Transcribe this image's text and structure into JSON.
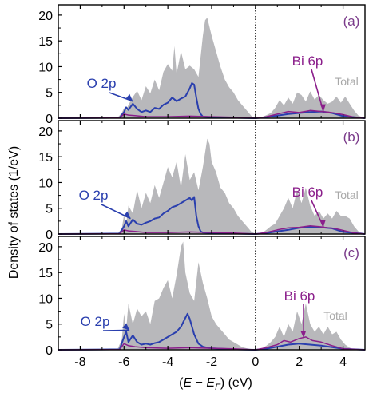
{
  "chart_data": {
    "type": "area",
    "xlabel": "(E − E_F) (eV)",
    "xlabel_parts": {
      "open": "(",
      "E": "E",
      "minus": " − ",
      "E2": "E",
      "sub": "F",
      "close": ")",
      "unit": " (eV)"
    },
    "ylabel": "Density of states (1/eV)",
    "xlim": [
      -9,
      5
    ],
    "ylim": [
      0,
      22
    ],
    "x_ticks": [
      -8,
      -6,
      -4,
      -2,
      0,
      2,
      4
    ],
    "x_tick_labels": [
      "-8",
      "-6",
      "-4",
      "-2",
      "0",
      "2",
      "4"
    ],
    "y_ticks": [
      0,
      5,
      10,
      15,
      20
    ],
    "y_tick_labels": [
      "0",
      "5",
      "10",
      "15",
      "20"
    ],
    "fermi_level": 0,
    "colors": {
      "total": "#b8b8bb",
      "o2p": "#2a3fae",
      "bi6p": "#8b1f8b",
      "panel_label": "#7a3a8a",
      "total_label": "#a8a8a8",
      "axis": "#000000"
    },
    "panels": [
      {
        "label": "(a)",
        "annotations": {
          "o2p": "O 2p",
          "bi6p": "Bi 6p",
          "total": "Total"
        },
        "series": [
          {
            "key": "total",
            "x": [
              -9,
              -6.3,
              -6.1,
              -6.0,
              -5.9,
              -5.8,
              -5.6,
              -5.4,
              -5.2,
              -5.0,
              -4.8,
              -4.6,
              -4.4,
              -4.2,
              -4.0,
              -3.8,
              -3.7,
              -3.6,
              -3.4,
              -3.2,
              -3.0,
              -2.8,
              -2.6,
              -2.4,
              -2.3,
              -2.2,
              -2.0,
              -1.8,
              -1.6,
              -1.4,
              -1.2,
              -1.0,
              -0.8,
              -0.6,
              -0.4,
              -0.2,
              -0.1,
              0.0,
              0.3,
              0.5,
              0.7,
              0.9,
              1.1,
              1.3,
              1.5,
              1.7,
              1.9,
              2.1,
              2.3,
              2.5,
              2.7,
              2.9,
              3.1,
              3.3,
              3.5,
              3.7,
              3.9,
              4.1,
              4.3,
              4.5,
              4.7,
              5.0
            ],
            "y": [
              0,
              0.1,
              1.0,
              2.0,
              1.5,
              2.6,
              4.1,
              5.3,
              3.5,
              6.2,
              4.8,
              7.5,
              5.4,
              9.0,
              10.5,
              9.2,
              14.0,
              8.6,
              13.0,
              9.5,
              10.2,
              9.5,
              8.0,
              16.0,
              19.0,
              19.5,
              16.0,
              13.0,
              10.0,
              7.5,
              6.0,
              5.0,
              3.5,
              2.5,
              1.5,
              0.5,
              0.1,
              0,
              0.2,
              0.6,
              1.0,
              2.0,
              3.5,
              2.5,
              4.0,
              2.8,
              5.0,
              4.5,
              3.2,
              5.2,
              3.6,
              4.5,
              3.5,
              2.8,
              3.2,
              4.2,
              3.0,
              4.2,
              2.8,
              1.5,
              0.5,
              0
            ]
          },
          {
            "key": "o2p",
            "x": [
              -9,
              -6.2,
              -6.0,
              -5.9,
              -5.8,
              -5.6,
              -5.4,
              -5.2,
              -5.0,
              -4.8,
              -4.6,
              -4.4,
              -4.2,
              -4.0,
              -3.8,
              -3.6,
              -3.4,
              -3.2,
              -3.0,
              -2.9,
              -2.8,
              -2.7,
              -2.6,
              -2.5,
              -2.4,
              -2.0,
              -1.5,
              -1.0,
              -0.5,
              0.0,
              0.5,
              1.0,
              1.5,
              2.0,
              2.5,
              3.0,
              3.5,
              4.0,
              5.0
            ],
            "y": [
              0,
              0.1,
              1.2,
              2.1,
              1.6,
              2.8,
              1.8,
              1.2,
              1.5,
              1.2,
              2.0,
              1.8,
              2.6,
              3.0,
              4.0,
              3.3,
              3.8,
              4.2,
              5.8,
              6.8,
              6.5,
              4.0,
              1.8,
              0.8,
              0.3,
              0.2,
              0.15,
              0.1,
              0.05,
              0,
              0.2,
              0.5,
              0.8,
              1.0,
              1.2,
              1.3,
              1.0,
              0.4,
              0
            ]
          },
          {
            "key": "bi6p",
            "x": [
              -9,
              -6.2,
              -6.0,
              -5.8,
              -5.5,
              -5.0,
              -4.0,
              -3.0,
              -2.0,
              -1.0,
              0.0,
              0.5,
              1.0,
              1.5,
              2.0,
              2.5,
              3.0,
              3.3,
              3.6,
              4.0,
              4.5,
              5.0
            ],
            "y": [
              0,
              0.05,
              0.8,
              0.6,
              0.5,
              0.3,
              0.3,
              0.4,
              0.3,
              0.2,
              0,
              0.3,
              0.8,
              1.3,
              1.1,
              1.5,
              1.3,
              1.2,
              1.0,
              0.7,
              0.2,
              0
            ]
          }
        ]
      },
      {
        "label": "(b)",
        "annotations": {
          "o2p": "O 2p",
          "bi6p": "Bi 6p",
          "total": "Total"
        },
        "series": [
          {
            "key": "total",
            "x": [
              -9,
              -6.3,
              -6.1,
              -6.0,
              -5.9,
              -5.8,
              -5.6,
              -5.4,
              -5.2,
              -5.0,
              -4.8,
              -4.6,
              -4.4,
              -4.2,
              -4.0,
              -3.8,
              -3.6,
              -3.4,
              -3.2,
              -3.0,
              -2.8,
              -2.6,
              -2.4,
              -2.2,
              -2.1,
              -2.0,
              -1.8,
              -1.6,
              -1.4,
              -1.2,
              -1.0,
              -0.8,
              -0.6,
              -0.4,
              -0.2,
              0.0,
              0.3,
              0.5,
              0.7,
              0.9,
              1.1,
              1.3,
              1.5,
              1.7,
              1.9,
              2.1,
              2.3,
              2.5,
              2.7,
              2.9,
              3.1,
              3.3,
              3.5,
              3.7,
              3.9,
              4.1,
              4.3,
              4.5,
              4.7,
              5.0
            ],
            "y": [
              0,
              0.1,
              1.0,
              3.8,
              2.0,
              5.5,
              4.0,
              8.5,
              5.0,
              8.0,
              6.0,
              9.5,
              7.0,
              10.0,
              13.0,
              11.0,
              14.0,
              9.0,
              15.5,
              10.5,
              12.0,
              8.5,
              13.0,
              18.5,
              17.5,
              14.0,
              12.0,
              9.0,
              8.0,
              6.0,
              5.0,
              3.5,
              2.5,
              1.5,
              0.5,
              0,
              0.2,
              0.8,
              1.5,
              2.0,
              3.5,
              5.0,
              7.0,
              5.0,
              8.5,
              6.0,
              9.0,
              5.5,
              3.5,
              4.5,
              3.0,
              4.0,
              3.0,
              4.5,
              3.5,
              3.5,
              3.0,
              1.5,
              0.5,
              0
            ]
          },
          {
            "key": "o2p",
            "x": [
              -9,
              -6.2,
              -6.0,
              -5.9,
              -5.8,
              -5.6,
              -5.4,
              -5.2,
              -5.0,
              -4.8,
              -4.6,
              -4.4,
              -4.2,
              -4.0,
              -3.8,
              -3.6,
              -3.4,
              -3.2,
              -3.0,
              -2.9,
              -2.8,
              -2.7,
              -2.6,
              -2.5,
              -2.4,
              -2.0,
              -1.5,
              -1.0,
              -0.5,
              0.0,
              0.5,
              1.0,
              1.5,
              2.0,
              2.5,
              3.0,
              3.5,
              4.0,
              5.0
            ],
            "y": [
              0,
              0.1,
              1.5,
              2.5,
              1.5,
              2.8,
              2.0,
              1.8,
              2.2,
              2.5,
              3.0,
              3.2,
              4.0,
              4.5,
              5.2,
              5.5,
              6.0,
              6.5,
              7.0,
              6.5,
              7.2,
              3.5,
              1.5,
              0.5,
              0.3,
              0.2,
              0.15,
              0.1,
              0.05,
              0,
              0.2,
              0.5,
              0.8,
              1.2,
              1.4,
              1.3,
              1.1,
              0.4,
              0
            ]
          },
          {
            "key": "bi6p",
            "x": [
              -9,
              -6.2,
              -6.0,
              -5.8,
              -5.5,
              -5.0,
              -4.0,
              -3.0,
              -2.0,
              -1.0,
              0.0,
              0.5,
              1.0,
              1.5,
              2.0,
              2.5,
              3.0,
              3.3,
              3.6,
              4.0,
              4.5,
              5.0
            ],
            "y": [
              0,
              0.05,
              0.8,
              0.6,
              0.5,
              0.3,
              0.3,
              0.4,
              0.3,
              0.2,
              0,
              0.3,
              0.8,
              1.2,
              1.3,
              1.6,
              1.4,
              1.2,
              1.1,
              0.7,
              0.2,
              0
            ]
          }
        ]
      },
      {
        "label": "(c)",
        "annotations": {
          "o2p": "O 2p",
          "bi6p": "Bi 6p",
          "total": "Total"
        },
        "series": [
          {
            "key": "total",
            "x": [
              -9,
              -6.3,
              -6.1,
              -6.0,
              -5.9,
              -5.8,
              -5.6,
              -5.4,
              -5.2,
              -5.0,
              -4.8,
              -4.6,
              -4.4,
              -4.2,
              -4.0,
              -3.8,
              -3.6,
              -3.4,
              -3.3,
              -3.2,
              -3.0,
              -2.8,
              -2.6,
              -2.4,
              -2.2,
              -2.0,
              -1.8,
              -1.6,
              -1.4,
              -1.2,
              -1.0,
              -0.8,
              -0.6,
              -0.4,
              -0.2,
              0.0,
              0.3,
              0.5,
              0.7,
              0.9,
              1.1,
              1.3,
              1.5,
              1.7,
              1.9,
              2.1,
              2.3,
              2.5,
              2.7,
              2.9,
              3.1,
              3.3,
              3.5,
              3.7,
              3.9,
              4.1,
              4.3,
              4.5,
              4.7,
              5.0
            ],
            "y": [
              0,
              0.1,
              2.0,
              7.0,
              4.0,
              9.0,
              5.0,
              8.0,
              6.5,
              7.5,
              5.0,
              9.5,
              10.0,
              12.0,
              13.5,
              10.0,
              14.5,
              20.0,
              21.0,
              15.0,
              11.0,
              9.5,
              17.0,
              13.0,
              10.0,
              6.5,
              5.0,
              4.0,
              3.0,
              2.0,
              1.5,
              1.0,
              0.5,
              0.3,
              0.1,
              0,
              0.3,
              0.8,
              1.5,
              2.5,
              4.5,
              2.5,
              5.0,
              3.5,
              7.5,
              5.0,
              9.0,
              5.0,
              3.5,
              4.5,
              3.0,
              4.5,
              3.0,
              3.5,
              2.0,
              1.0,
              0.4,
              0.1,
              0,
              0
            ]
          },
          {
            "key": "o2p",
            "x": [
              -9,
              -6.2,
              -6.0,
              -5.9,
              -5.8,
              -5.6,
              -5.4,
              -5.2,
              -5.0,
              -4.8,
              -4.6,
              -4.4,
              -4.2,
              -4.0,
              -3.8,
              -3.6,
              -3.4,
              -3.2,
              -3.1,
              -3.0,
              -2.8,
              -2.6,
              -2.4,
              -2.2,
              -2.0,
              -1.5,
              -1.0,
              -0.5,
              0.0,
              0.5,
              1.0,
              1.5,
              2.0,
              2.5,
              3.0,
              3.5,
              4.0,
              5.0
            ],
            "y": [
              0,
              0.1,
              2.5,
              3.5,
              1.5,
              2.8,
              1.5,
              1.0,
              1.2,
              1.0,
              1.3,
              1.5,
              2.0,
              2.5,
              3.0,
              3.5,
              4.5,
              6.2,
              7.0,
              6.0,
              3.0,
              1.2,
              0.6,
              0.4,
              0.3,
              0.2,
              0.1,
              0.05,
              0,
              0.2,
              0.6,
              1.0,
              1.2,
              1.0,
              0.8,
              0.5,
              0.2,
              0
            ]
          },
          {
            "key": "bi6p",
            "x": [
              -9,
              -6.2,
              -6.0,
              -5.8,
              -5.5,
              -5.0,
              -4.0,
              -3.0,
              -2.0,
              -1.0,
              0.0,
              0.5,
              1.0,
              1.3,
              1.6,
              2.0,
              2.3,
              2.6,
              3.0,
              3.5,
              4.0,
              5.0
            ],
            "y": [
              0,
              0.05,
              1.2,
              0.8,
              0.6,
              0.4,
              0.3,
              0.4,
              0.3,
              0.2,
              0,
              0.4,
              1.0,
              1.8,
              1.5,
              2.2,
              2.5,
              1.8,
              1.5,
              0.8,
              0.2,
              0
            ]
          }
        ]
      }
    ]
  }
}
